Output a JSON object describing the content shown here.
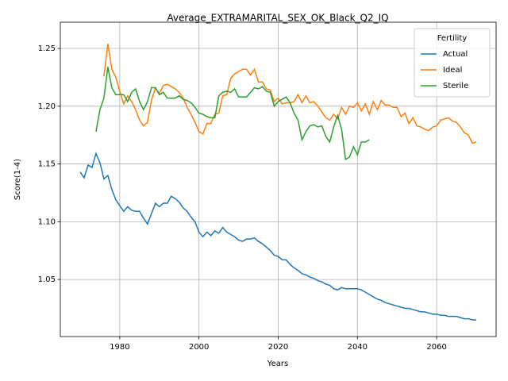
{
  "chart_data": {
    "type": "line",
    "title": "Average_EXTRAMARITAL_SEX_OK_Black_Q2_IQ",
    "x_label": "Years",
    "y_label": "Score(1-4)",
    "legend_title": "Fertility",
    "legend_loc": "upper right",
    "grid": true,
    "xlim": [
      1965,
      2075
    ],
    "ylim": [
      1.0006,
      1.2727
    ],
    "xticks": [
      1980,
      2000,
      2020,
      2040,
      2060
    ],
    "yticks": [
      1.05,
      {
        "value": 1.1,
        "label": "1.10"
      },
      1.15,
      {
        "value": 1.2,
        "label": "1.20"
      },
      1.25
    ],
    "x": [
      1970,
      1971,
      1972,
      1973,
      1974,
      1975,
      1976,
      1977,
      1978,
      1979,
      1980,
      1981,
      1982,
      1983,
      1984,
      1985,
      1986,
      1987,
      1988,
      1989,
      1990,
      1991,
      1992,
      1993,
      1994,
      1995,
      1996,
      1997,
      1998,
      1999,
      2000,
      2001,
      2002,
      2003,
      2004,
      2005,
      2006,
      2007,
      2008,
      2009,
      2010,
      2011,
      2012,
      2013,
      2014,
      2015,
      2016,
      2017,
      2018,
      2019,
      2020,
      2021,
      2022,
      2023,
      2024,
      2025,
      2026,
      2027,
      2028,
      2029,
      2030,
      2031,
      2032,
      2033,
      2034,
      2035,
      2036,
      2037,
      2038,
      2039,
      2040,
      2041,
      2042,
      2043,
      2044,
      2045,
      2046,
      2047,
      2048,
      2049,
      2050,
      2051,
      2052,
      2053,
      2054,
      2055,
      2056,
      2057,
      2058,
      2059,
      2060,
      2061,
      2062,
      2063,
      2064,
      2065,
      2066,
      2067,
      2068,
      2069,
      2070
    ],
    "series": [
      {
        "name": "Actual",
        "color": "#1f77b4",
        "values": [
          1.143,
          1.138,
          1.149,
          1.147,
          1.159,
          1.151,
          1.137,
          1.14,
          1.128,
          1.119,
          1.114,
          1.109,
          1.113,
          1.11,
          1.109,
          1.109,
          1.103,
          1.098,
          1.107,
          1.116,
          1.113,
          1.116,
          1.116,
          1.122,
          1.12,
          1.117,
          1.112,
          1.109,
          1.104,
          1.1,
          1.091,
          1.087,
          1.091,
          1.088,
          1.092,
          1.09,
          1.095,
          1.091,
          1.089,
          1.087,
          1.084,
          1.083,
          1.085,
          1.085,
          1.086,
          1.083,
          1.081,
          1.078,
          1.075,
          1.071,
          1.07,
          1.067,
          1.067,
          1.063,
          1.06,
          1.058,
          1.055,
          1.054,
          1.052,
          1.051,
          1.049,
          1.048,
          1.046,
          1.045,
          1.042,
          1.041,
          1.043,
          1.042,
          1.042,
          1.042,
          1.042,
          1.041,
          1.039,
          1.037,
          1.035,
          1.033,
          1.032,
          1.03,
          1.029,
          1.028,
          1.027,
          1.026,
          1.025,
          1.025,
          1.024,
          1.023,
          1.022,
          1.022,
          1.021,
          1.02,
          1.02,
          1.019,
          1.019,
          1.018,
          1.018,
          1.018,
          1.017,
          1.016,
          1.016,
          1.015,
          1.015
        ]
      },
      {
        "name": "Ideal",
        "color": "#ff7f0e",
        "values": [
          null,
          null,
          null,
          null,
          null,
          null,
          1.226,
          1.254,
          1.232,
          1.225,
          1.213,
          1.202,
          1.209,
          1.204,
          1.197,
          1.188,
          1.183,
          1.186,
          1.205,
          1.216,
          1.211,
          1.218,
          1.219,
          1.217,
          1.215,
          1.212,
          1.207,
          1.199,
          1.193,
          1.186,
          1.178,
          1.176,
          1.185,
          1.185,
          1.193,
          1.194,
          1.209,
          1.21,
          1.224,
          1.228,
          1.23,
          1.232,
          1.232,
          1.227,
          1.232,
          1.221,
          1.221,
          1.215,
          1.214,
          1.204,
          1.207,
          1.202,
          1.203,
          1.203,
          1.204,
          1.21,
          1.203,
          1.209,
          1.203,
          1.204,
          1.2,
          1.195,
          1.19,
          1.188,
          1.193,
          1.189,
          1.199,
          1.193,
          1.2,
          1.199,
          1.203,
          1.196,
          1.202,
          1.193,
          1.204,
          1.197,
          1.205,
          1.201,
          1.201,
          1.199,
          1.199,
          1.191,
          1.194,
          1.185,
          1.19,
          1.183,
          1.182,
          1.18,
          1.179,
          1.182,
          1.183,
          1.188,
          1.189,
          1.19,
          1.187,
          1.186,
          1.182,
          1.177,
          1.175,
          1.168,
          1.169
        ]
      },
      {
        "name": "Sterile",
        "color": "#2ca02c",
        "values": [
          null,
          null,
          null,
          null,
          1.178,
          1.197,
          1.207,
          1.234,
          1.216,
          1.21,
          1.21,
          1.21,
          1.204,
          1.212,
          1.215,
          1.204,
          1.197,
          1.204,
          1.216,
          1.216,
          1.21,
          1.212,
          1.207,
          1.207,
          1.207,
          1.209,
          1.206,
          1.205,
          1.203,
          1.199,
          1.194,
          1.193,
          1.191,
          1.19,
          1.19,
          1.209,
          1.212,
          1.213,
          1.212,
          1.215,
          1.208,
          1.208,
          1.208,
          1.212,
          1.216,
          1.215,
          1.217,
          1.213,
          1.212,
          1.2,
          1.204,
          1.206,
          1.208,
          1.203,
          1.194,
          1.188,
          1.171,
          1.178,
          1.183,
          1.184,
          1.182,
          1.183,
          1.174,
          1.169,
          1.182,
          1.192,
          1.18,
          1.154,
          1.156,
          1.165,
          1.158,
          1.169,
          1.169,
          1.171,
          null,
          null,
          null,
          null,
          null,
          null,
          null,
          null,
          null,
          null,
          null,
          null,
          null,
          null,
          null,
          null,
          null,
          null,
          null,
          null,
          null,
          null,
          null,
          null,
          null,
          null,
          null
        ]
      }
    ]
  }
}
